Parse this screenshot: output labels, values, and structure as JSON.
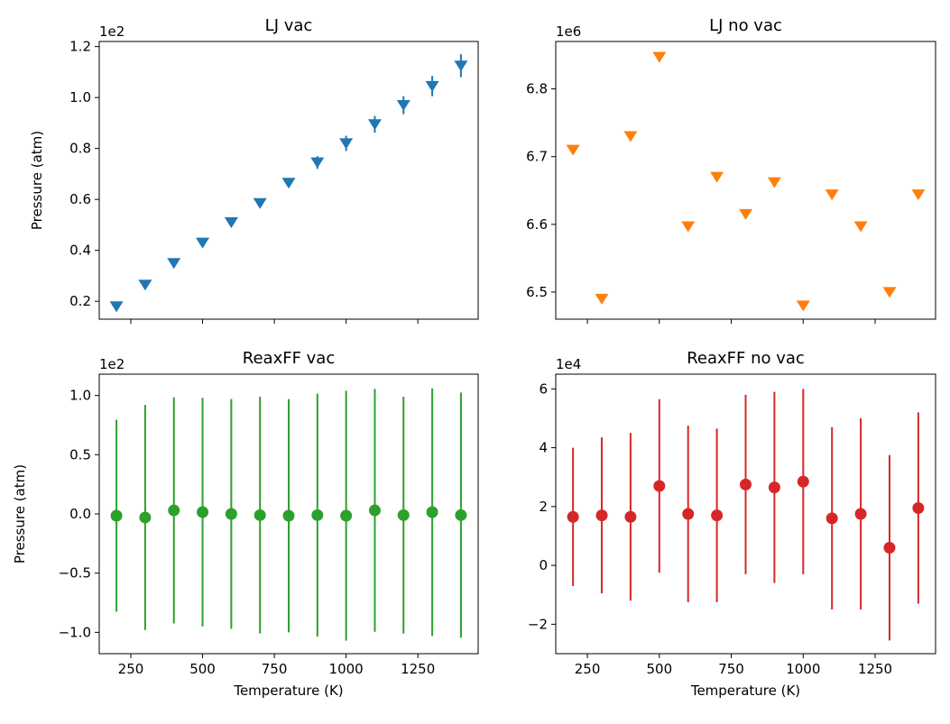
{
  "figure": {
    "colors": {
      "LJ vac": "#1f77b4",
      "LJ no vac": "#ff7f0e",
      "ReaxFF vac": "#2ca02c",
      "ReaxFF no vac": "#d62728"
    }
  },
  "chart_data": [
    {
      "type": "scatter",
      "title": "LJ vac",
      "xlabel": "",
      "ylabel": "Pressure (atm)",
      "y_offset_label": "1e2",
      "marker": "triangle-down",
      "color": "#1f77b4",
      "xlim": [
        140,
        1460
      ],
      "ylim": [
        0.13,
        1.22
      ],
      "xticks": [
        250,
        500,
        750,
        1000,
        1250
      ],
      "xtick_labels_shown": false,
      "yticks": [
        0.2,
        0.4,
        0.6,
        0.8,
        1.0,
        1.2
      ],
      "ytick_labels": [
        "0.2",
        "0.4",
        "0.6",
        "0.8",
        "1.0",
        "1.2"
      ],
      "x": [
        200,
        300,
        400,
        500,
        600,
        700,
        800,
        900,
        1000,
        1100,
        1200,
        1300,
        1400
      ],
      "y": [
        0.18,
        0.265,
        0.35,
        0.43,
        0.51,
        0.585,
        0.665,
        0.745,
        0.82,
        0.895,
        0.97,
        1.045,
        1.125
      ],
      "yerr": [
        0.005,
        0.006,
        0.008,
        0.01,
        0.012,
        0.012,
        0.016,
        0.025,
        0.03,
        0.033,
        0.035,
        0.04,
        0.045
      ]
    },
    {
      "type": "scatter",
      "title": "LJ no vac",
      "xlabel": "",
      "ylabel": "",
      "y_offset_label": "1e6",
      "marker": "triangle-down",
      "color": "#ff7f0e",
      "xlim": [
        140,
        1460
      ],
      "ylim": [
        6.46,
        6.87
      ],
      "xticks": [
        250,
        500,
        750,
        1000,
        1250
      ],
      "xtick_labels_shown": false,
      "yticks": [
        6.5,
        6.6,
        6.7,
        6.8
      ],
      "ytick_labels": [
        "6.5",
        "6.6",
        "6.7",
        "6.8"
      ],
      "x": [
        200,
        300,
        400,
        500,
        600,
        700,
        800,
        900,
        1000,
        1100,
        1200,
        1300,
        1400
      ],
      "y": [
        6.71,
        6.49,
        6.73,
        6.847,
        6.597,
        6.67,
        6.615,
        6.662,
        6.48,
        6.644,
        6.597,
        6.5,
        6.644
      ],
      "yerr": [
        0,
        0,
        0,
        0,
        0,
        0,
        0,
        0,
        0,
        0,
        0,
        0,
        0
      ]
    },
    {
      "type": "scatter",
      "title": "ReaxFF vac",
      "xlabel": "Temperature (K)",
      "ylabel": "Pressure (atm)",
      "y_offset_label": "1e2",
      "marker": "circle",
      "color": "#2ca02c",
      "xlim": [
        140,
        1460
      ],
      "ylim": [
        -1.18,
        1.18
      ],
      "xticks": [
        250,
        500,
        750,
        1000,
        1250
      ],
      "xtick_labels": [
        "250",
        "500",
        "750",
        "1000",
        "1250"
      ],
      "yticks": [
        -1.0,
        -0.5,
        0.0,
        0.5,
        1.0
      ],
      "ytick_labels": [
        "−1.0",
        "−0.5",
        "0.0",
        "0.5",
        "1.0"
      ],
      "x": [
        200,
        300,
        400,
        500,
        600,
        700,
        800,
        900,
        1000,
        1100,
        1200,
        1300,
        1400
      ],
      "y": [
        -0.015,
        -0.03,
        0.03,
        0.015,
        0.0,
        -0.01,
        -0.015,
        -0.01,
        -0.015,
        0.03,
        -0.01,
        0.015,
        -0.01
      ],
      "yerr": [
        0.81,
        0.95,
        0.955,
        0.965,
        0.97,
        1.0,
        0.985,
        1.025,
        1.055,
        1.025,
        1.0,
        1.045,
        1.035
      ]
    },
    {
      "type": "scatter",
      "title": "ReaxFF no vac",
      "xlabel": "Temperature (K)",
      "ylabel": "",
      "y_offset_label": "1e4",
      "marker": "circle",
      "color": "#d62728",
      "xlim": [
        140,
        1460
      ],
      "ylim": [
        -3.0,
        6.5
      ],
      "xticks": [
        250,
        500,
        750,
        1000,
        1250
      ],
      "xtick_labels": [
        "250",
        "500",
        "750",
        "1000",
        "1250"
      ],
      "yticks": [
        -2,
        0,
        2,
        4,
        6
      ],
      "ytick_labels": [
        "−2",
        "0",
        "2",
        "4",
        "6"
      ],
      "x": [
        200,
        300,
        400,
        500,
        600,
        700,
        800,
        900,
        1000,
        1100,
        1200,
        1300,
        1400
      ],
      "y": [
        1.65,
        1.7,
        1.65,
        2.7,
        1.75,
        1.7,
        2.75,
        2.65,
        2.85,
        1.6,
        1.75,
        0.6,
        1.95
      ],
      "yerr": [
        2.35,
        2.65,
        2.85,
        2.95,
        3.0,
        2.95,
        3.05,
        3.25,
        3.15,
        3.1,
        3.25,
        3.15,
        3.25
      ]
    }
  ]
}
